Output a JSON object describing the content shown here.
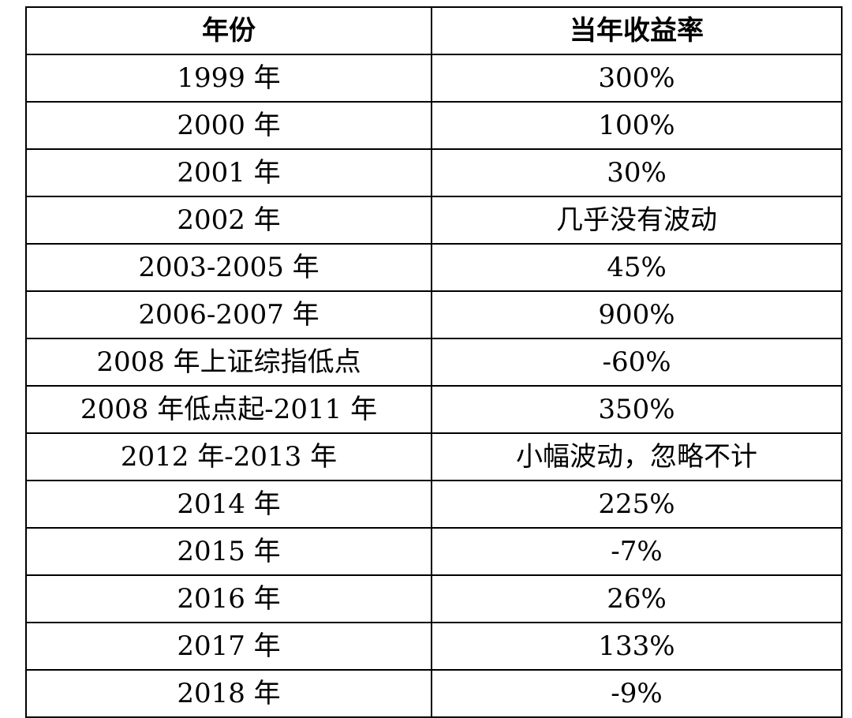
{
  "chart_data": {
    "type": "table",
    "columns": [
      "年份",
      "当年收益率"
    ],
    "rows": [
      [
        "1999 年",
        "300%"
      ],
      [
        "2000 年",
        "100%"
      ],
      [
        "2001 年",
        "30%"
      ],
      [
        "2002 年",
        "几乎没有波动"
      ],
      [
        "2003-2005 年",
        "45%"
      ],
      [
        "2006-2007 年",
        "900%"
      ],
      [
        "2008 年上证综指低点",
        "-60%"
      ],
      [
        "2008 年低点起-2011 年",
        "350%"
      ],
      [
        "2012 年-2013 年",
        "小幅波动，忽略不计"
      ],
      [
        "2014 年",
        "225%"
      ],
      [
        "2015 年",
        "-7%"
      ],
      [
        "2016 年",
        "26%"
      ],
      [
        "2017 年",
        "133%"
      ],
      [
        "2018 年",
        "-9%"
      ]
    ]
  }
}
